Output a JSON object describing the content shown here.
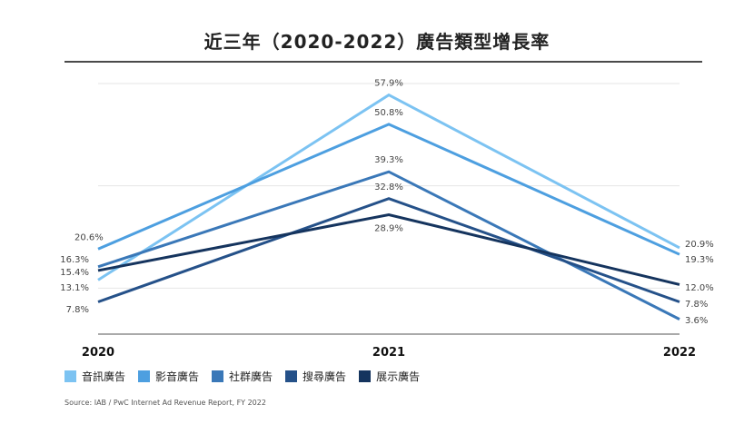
{
  "title": "近三年（2020-2022）廣告類型增長率",
  "source": "Source: IAB / PwC Internet Ad Revenue Report, FY 2022",
  "chart_data": {
    "type": "line",
    "categories": [
      "2020",
      "2021",
      "2022"
    ],
    "ylim": [
      0,
      60
    ],
    "grid": true,
    "legend_position": "bottom-left",
    "series": [
      {
        "name": "音訊廣告",
        "values": [
          13.1,
          57.9,
          20.9
        ],
        "labels": [
          "13.1%",
          "57.9%",
          "20.9%"
        ],
        "color": "#7cc3f2"
      },
      {
        "name": "影音廣告",
        "values": [
          20.6,
          50.8,
          19.3
        ],
        "labels": [
          "20.6%",
          "50.8%",
          "19.3%"
        ],
        "color": "#4d9fe0"
      },
      {
        "name": "社群廣告",
        "values": [
          16.3,
          39.3,
          3.6
        ],
        "labels": [
          "16.3%",
          "39.3%",
          "3.6%"
        ],
        "color": "#3a78b8"
      },
      {
        "name": "搜尋廣告",
        "values": [
          7.8,
          32.8,
          7.8
        ],
        "labels": [
          "7.8%",
          "32.8%",
          "7.8%"
        ],
        "color": "#255189"
      },
      {
        "name": "展示廣告",
        "values": [
          15.4,
          28.9,
          12.0
        ],
        "labels": [
          "15.4%",
          "28.9%",
          "12.0%"
        ],
        "color": "#15345e"
      }
    ]
  }
}
